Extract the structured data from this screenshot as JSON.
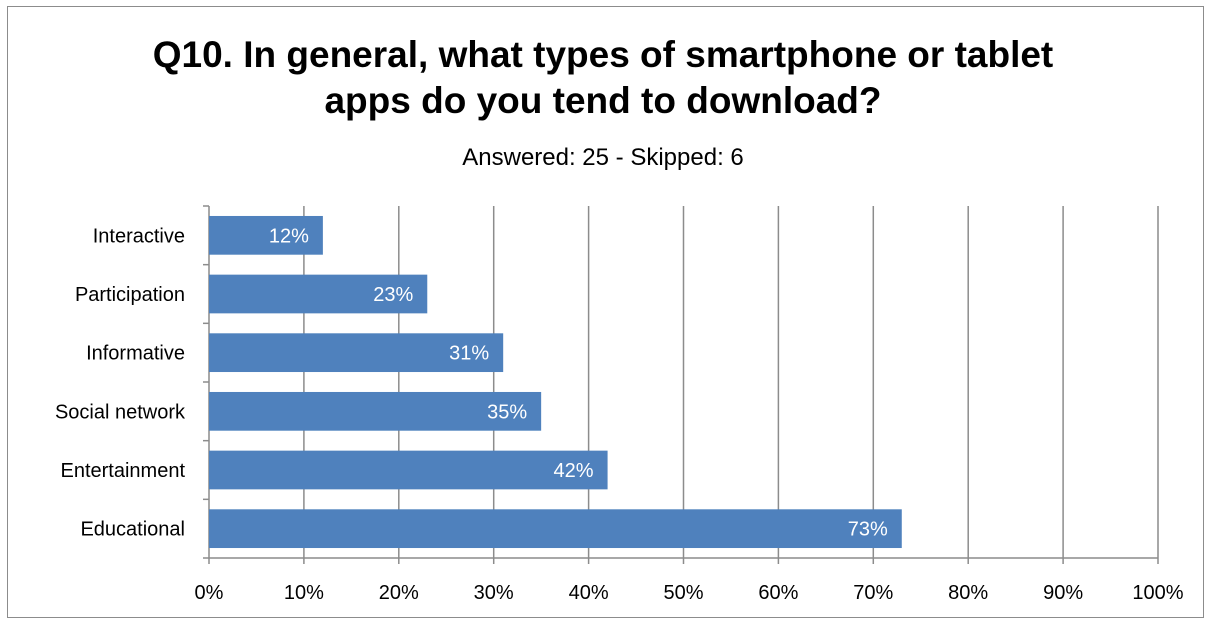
{
  "chart_data": {
    "type": "bar",
    "orientation": "horizontal",
    "title": "Q10. In general, what types of smartphone or tablet apps do you tend to download?",
    "subtitle": "Answered: 25 - Skipped: 6",
    "categories": [
      "Interactive",
      "Participation",
      "Informative",
      "Social network",
      "Entertainment",
      "Educational"
    ],
    "values": [
      12,
      23,
      31,
      35,
      42,
      73
    ],
    "data_labels": [
      "12%",
      "23%",
      "31%",
      "35%",
      "42%",
      "73%"
    ],
    "xlim": [
      0,
      100
    ],
    "x_ticks": [
      0,
      10,
      20,
      30,
      40,
      50,
      60,
      70,
      80,
      90,
      100
    ],
    "x_tick_labels": [
      "0%",
      "10%",
      "20%",
      "30%",
      "40%",
      "50%",
      "60%",
      "70%",
      "80%",
      "90%",
      "100%"
    ],
    "grid": "vertical",
    "legend": "none",
    "bar_color": "#4f81bd"
  }
}
